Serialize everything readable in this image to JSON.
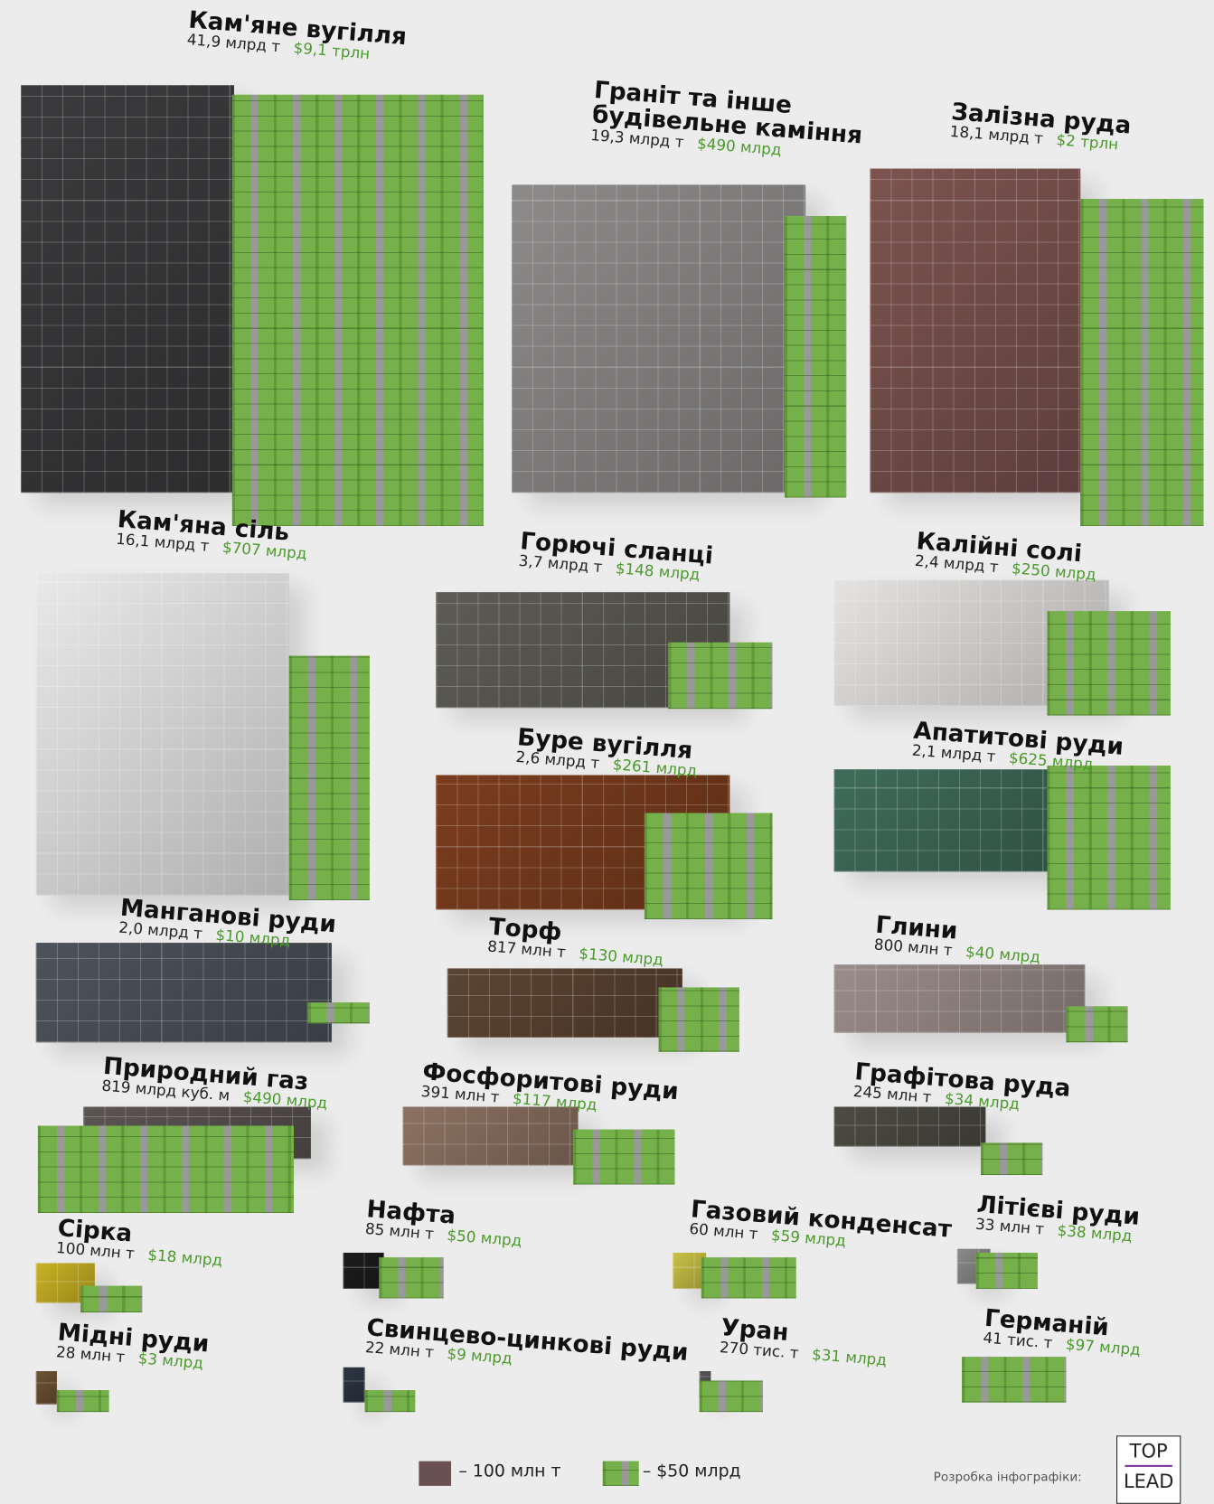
{
  "items": [
    {
      "name": "Кам'яне вугілля",
      "volume": "41,9 млрд т",
      "value": "$9,1 трлн"
    },
    {
      "name": "Граніт та інше будівельне каміння",
      "volume": "19,3 млрд т",
      "value": "$490 млрд"
    },
    {
      "name": "Залізна руда",
      "volume": "18,1 млрд т",
      "value": "$2 трлн"
    },
    {
      "name": "Кам'яна сіль",
      "volume": "16,1 млрд т",
      "value": "$707 млрд"
    },
    {
      "name": "Горючі сланці",
      "volume": "3,7 млрд т",
      "value": "$148 млрд"
    },
    {
      "name": "Калійні солі",
      "volume": "2,4 млрд т",
      "value": "$250 млрд"
    },
    {
      "name": "Буре вугілля",
      "volume": "2,6 млрд т",
      "value": "$261 млрд"
    },
    {
      "name": "Апатитові руди",
      "volume": "2,1 млрд т",
      "value": "$625 млрд"
    },
    {
      "name": "Манганові руди",
      "volume": "2,0 млрд т",
      "value": "$10 млрд"
    },
    {
      "name": "Торф",
      "volume": "817 млн т",
      "value": "$130 млрд"
    },
    {
      "name": "Глини",
      "volume": "800 млн т",
      "value": "$40 млрд"
    },
    {
      "name": "Природний газ",
      "volume": "819 млрд куб. м",
      "value": "$490 млрд"
    },
    {
      "name": "Фосфоритові руди",
      "volume": "391 млн т",
      "value": "$117 млрд"
    },
    {
      "name": "Графітова руда",
      "volume": "245 млн т",
      "value": "$34 млрд"
    },
    {
      "name": "Сірка",
      "volume": "100 млн т",
      "value": "$18 млрд"
    },
    {
      "name": "Нафта",
      "volume": "85 млн т",
      "value": "$50 млрд"
    },
    {
      "name": "Газовий конденсат",
      "volume": "60 млн т",
      "value": "$59 млрд"
    },
    {
      "name": "Літієві руди",
      "volume": "33 млн т",
      "value": "$38 млрд"
    },
    {
      "name": "Мідні руди",
      "volume": "28 млн т",
      "value": "$3 млрд"
    },
    {
      "name": "Свинцево-цинкові руди",
      "volume": "22 млн т",
      "value": "$9 млрд"
    },
    {
      "name": "Уран",
      "volume": "270 тис. т",
      "value": "$31 млрд"
    },
    {
      "name": "Германій",
      "volume": "41 тис. т",
      "value": "$97 млрд"
    }
  ],
  "legend": {
    "material": "– 100 млн т",
    "money": "– $50 млрд"
  },
  "footer": {
    "credit": "Розробка інфографіки:",
    "logo_top": "TOP",
    "logo_bottom": "LEAD"
  }
}
